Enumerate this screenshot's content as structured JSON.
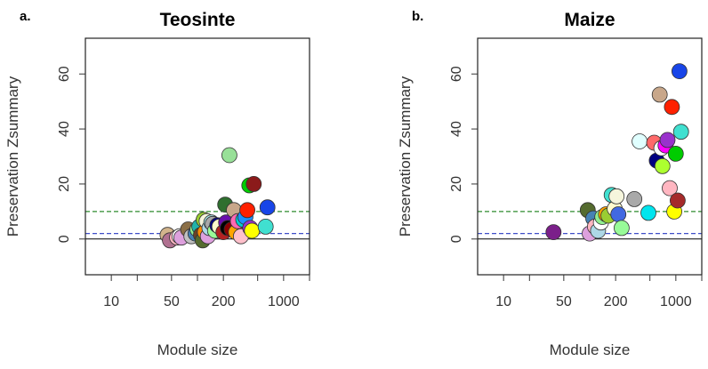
{
  "chart_data": [
    {
      "type": "scatter",
      "panel_label": "a.",
      "title": "Teosinte",
      "xlabel": "Module size",
      "ylabel": "Preservation Zsummary",
      "x_scale": "log",
      "xlim": [
        5,
        2000
      ],
      "ylim": [
        -13,
        73
      ],
      "x_tick_labels": [
        "10",
        "50",
        "200",
        "1000"
      ],
      "x_major_ticks": [
        10,
        50,
        200,
        1000
      ],
      "x_minor_ticks": [
        20,
        100,
        500,
        2000
      ],
      "y_ticks": [
        0,
        20,
        40,
        60
      ],
      "reference_lines": [
        {
          "y": 10,
          "color": "#2e8b2e",
          "style": "dashed"
        },
        {
          "y": 2,
          "color": "#3f4fc8",
          "style": "dashed"
        },
        {
          "y": 0,
          "color": "#000000",
          "style": "solid"
        }
      ],
      "points": [
        {
          "x": 45,
          "y": 1.5,
          "color": "#d2b48c"
        },
        {
          "x": 48,
          "y": -0.5,
          "color": "#b07090"
        },
        {
          "x": 58,
          "y": 0.5,
          "color": "#ffb6c1"
        },
        {
          "x": 62,
          "y": 1,
          "color": "#ffffff"
        },
        {
          "x": 65,
          "y": 0.5,
          "color": "#dda0dd"
        },
        {
          "x": 78,
          "y": 3.5,
          "color": "#8b6f47"
        },
        {
          "x": 85,
          "y": 1,
          "color": "#c0c0c0"
        },
        {
          "x": 95,
          "y": 2,
          "color": "#4682b4"
        },
        {
          "x": 100,
          "y": 3.5,
          "color": "#90ee90"
        },
        {
          "x": 105,
          "y": 4.5,
          "color": "#20b2aa"
        },
        {
          "x": 110,
          "y": 1.5,
          "color": "#6b4226"
        },
        {
          "x": 115,
          "y": -0.5,
          "color": "#556b2f"
        },
        {
          "x": 118,
          "y": 7,
          "color": "#9acd32"
        },
        {
          "x": 122,
          "y": 2.5,
          "color": "#ff8c00"
        },
        {
          "x": 128,
          "y": 6.5,
          "color": "#f5f5dc"
        },
        {
          "x": 132,
          "y": 1,
          "color": "#dda0dd"
        },
        {
          "x": 138,
          "y": 4,
          "color": "#add8e6"
        },
        {
          "x": 145,
          "y": 6,
          "color": "#afeeee"
        },
        {
          "x": 150,
          "y": 5.5,
          "color": "#a9a9a9"
        },
        {
          "x": 160,
          "y": 3,
          "color": "#98fb98"
        },
        {
          "x": 170,
          "y": 5,
          "color": "#000080"
        },
        {
          "x": 180,
          "y": 4.5,
          "color": "#fffacd"
        },
        {
          "x": 200,
          "y": 2.5,
          "color": "#b22222"
        },
        {
          "x": 210,
          "y": 12.5,
          "color": "#2f6f2f"
        },
        {
          "x": 215,
          "y": 6,
          "color": "#6a0dad"
        },
        {
          "x": 225,
          "y": 4,
          "color": "#000000"
        },
        {
          "x": 235,
          "y": 30.5,
          "color": "#98e098"
        },
        {
          "x": 250,
          "y": 3.5,
          "color": "#8b0000"
        },
        {
          "x": 265,
          "y": 10.5,
          "color": "#c8a78a"
        },
        {
          "x": 280,
          "y": 2.5,
          "color": "#ffa500"
        },
        {
          "x": 295,
          "y": 6.5,
          "color": "#ff69b4"
        },
        {
          "x": 320,
          "y": 1,
          "color": "#ffc0cb"
        },
        {
          "x": 340,
          "y": 7,
          "color": "#00ced1"
        },
        {
          "x": 360,
          "y": 8,
          "color": "#1e90ff"
        },
        {
          "x": 380,
          "y": 10.5,
          "color": "#ff2000"
        },
        {
          "x": 400,
          "y": 19.5,
          "color": "#00cc00"
        },
        {
          "x": 410,
          "y": 4,
          "color": "#9932cc"
        },
        {
          "x": 430,
          "y": 3,
          "color": "#ffff00"
        },
        {
          "x": 450,
          "y": 20,
          "color": "#8b1a1a"
        },
        {
          "x": 620,
          "y": 4.5,
          "color": "#40e0d0"
        },
        {
          "x": 650,
          "y": 11.5,
          "color": "#1845e8"
        }
      ]
    },
    {
      "type": "scatter",
      "panel_label": "b.",
      "title": "Maize",
      "xlabel": "Module size",
      "ylabel": "Preservation Zsummary",
      "x_scale": "log",
      "xlim": [
        5,
        2000
      ],
      "ylim": [
        -13,
        73
      ],
      "x_tick_labels": [
        "10",
        "50",
        "200",
        "1000"
      ],
      "x_major_ticks": [
        10,
        50,
        200,
        1000
      ],
      "x_minor_ticks": [
        20,
        100,
        500,
        2000
      ],
      "y_ticks": [
        0,
        20,
        40,
        60
      ],
      "reference_lines": [
        {
          "y": 10,
          "color": "#2e8b2e",
          "style": "dashed"
        },
        {
          "y": 2,
          "color": "#3f4fc8",
          "style": "dashed"
        },
        {
          "y": 0,
          "color": "#000000",
          "style": "solid"
        }
      ],
      "points": [
        {
          "x": 38,
          "y": 2.5,
          "color": "#7b1f8a"
        },
        {
          "x": 95,
          "y": 10.5,
          "color": "#556b2f"
        },
        {
          "x": 100,
          "y": 2,
          "color": "#dda0dd"
        },
        {
          "x": 110,
          "y": 7.5,
          "color": "#4682b4"
        },
        {
          "x": 115,
          "y": 4.5,
          "color": "#ffb6c1"
        },
        {
          "x": 125,
          "y": 3,
          "color": "#add8e6"
        },
        {
          "x": 135,
          "y": 6,
          "color": "#ffffff"
        },
        {
          "x": 140,
          "y": 8,
          "color": "#90ee90"
        },
        {
          "x": 155,
          "y": 9,
          "color": "#ffa500"
        },
        {
          "x": 165,
          "y": 8.5,
          "color": "#9acd32"
        },
        {
          "x": 180,
          "y": 16,
          "color": "#40e0d0"
        },
        {
          "x": 195,
          "y": 11,
          "color": "#fffacd"
        },
        {
          "x": 205,
          "y": 15.5,
          "color": "#f5f5dc"
        },
        {
          "x": 215,
          "y": 9,
          "color": "#4169e1"
        },
        {
          "x": 235,
          "y": 4,
          "color": "#98fb98"
        },
        {
          "x": 330,
          "y": 14.5,
          "color": "#a9a9a9"
        },
        {
          "x": 380,
          "y": 35.5,
          "color": "#e0ffff"
        },
        {
          "x": 480,
          "y": 9.5,
          "color": "#00e5ee"
        },
        {
          "x": 560,
          "y": 35,
          "color": "#ff6a6a"
        },
        {
          "x": 600,
          "y": 28.5,
          "color": "#000080"
        },
        {
          "x": 650,
          "y": 52.5,
          "color": "#c8a78a"
        },
        {
          "x": 680,
          "y": 33,
          "color": "#ffffff"
        },
        {
          "x": 700,
          "y": 26.5,
          "color": "#adff2f"
        },
        {
          "x": 760,
          "y": 34,
          "color": "#ff00ff"
        },
        {
          "x": 800,
          "y": 36,
          "color": "#9932cc"
        },
        {
          "x": 850,
          "y": 18.5,
          "color": "#ffb6c1"
        },
        {
          "x": 900,
          "y": 48,
          "color": "#ff2000"
        },
        {
          "x": 960,
          "y": 10,
          "color": "#ffff00"
        },
        {
          "x": 1000,
          "y": 31,
          "color": "#00cc00"
        },
        {
          "x": 1050,
          "y": 14,
          "color": "#a52a2a"
        },
        {
          "x": 1100,
          "y": 61,
          "color": "#1845e8"
        },
        {
          "x": 1150,
          "y": 39,
          "color": "#40e0d0"
        }
      ]
    }
  ]
}
